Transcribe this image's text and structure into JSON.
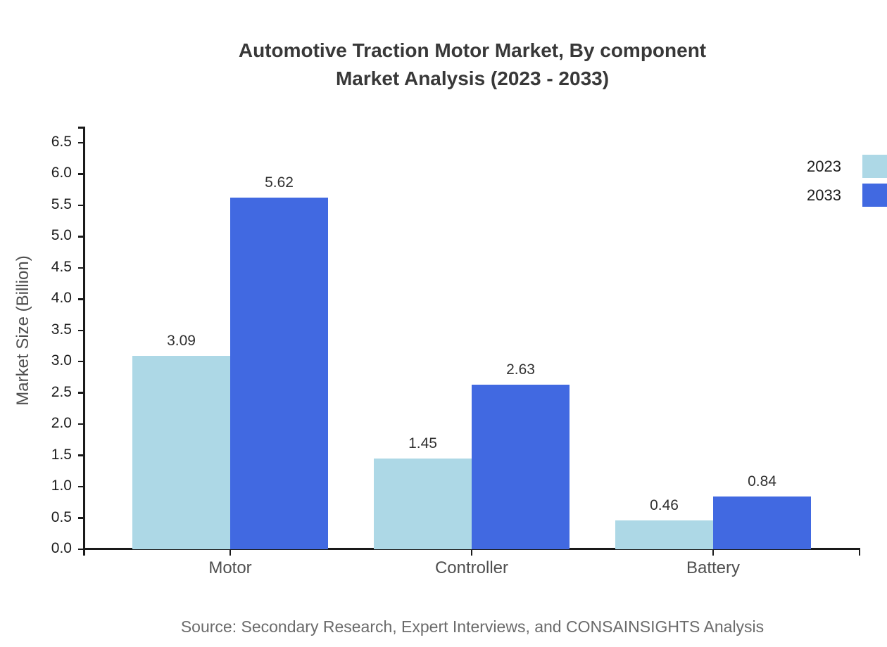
{
  "title": {
    "line1": "Automotive Traction Motor Market, By component",
    "line2": "Market Analysis (2023 - 2033)"
  },
  "source": "Source: Secondary Research, Expert Interviews, and CONSAINSIGHTS Analysis",
  "colors": {
    "series_2023": "#add8e6",
    "series_2033": "#4169e1",
    "axis": "#1a1a1a",
    "title_text": "#383838",
    "tick_text": "#1c1c1c",
    "category_text": "#4f4f4f",
    "source_text": "#6b6b6b"
  },
  "chart_data": {
    "type": "bar",
    "title": "Automotive Traction Motor Market, By component Market Analysis (2023 - 2033)",
    "xlabel": "",
    "ylabel": "Market Size (Billion)",
    "categories": [
      "Motor",
      "Controller",
      "Battery"
    ],
    "series": [
      {
        "name": "2023",
        "color": "#add8e6",
        "values": [
          3.09,
          1.45,
          0.46
        ]
      },
      {
        "name": "2033",
        "color": "#4169e1",
        "values": [
          5.62,
          2.63,
          0.84
        ]
      }
    ],
    "value_labels": [
      [
        "3.09",
        "5.62"
      ],
      [
        "1.45",
        "2.63"
      ],
      [
        "0.46",
        "0.84"
      ]
    ],
    "ylim": [
      0.0,
      6.5
    ],
    "ytick_step": 0.5,
    "yticks": [
      "0.0",
      "0.5",
      "1.0",
      "1.5",
      "2.0",
      "2.5",
      "3.0",
      "3.5",
      "4.0",
      "4.5",
      "5.0",
      "5.5",
      "6.0",
      "6.5"
    ],
    "grid": false,
    "legend_position": "top-right",
    "legend_entries": [
      "2023",
      "2033"
    ]
  }
}
